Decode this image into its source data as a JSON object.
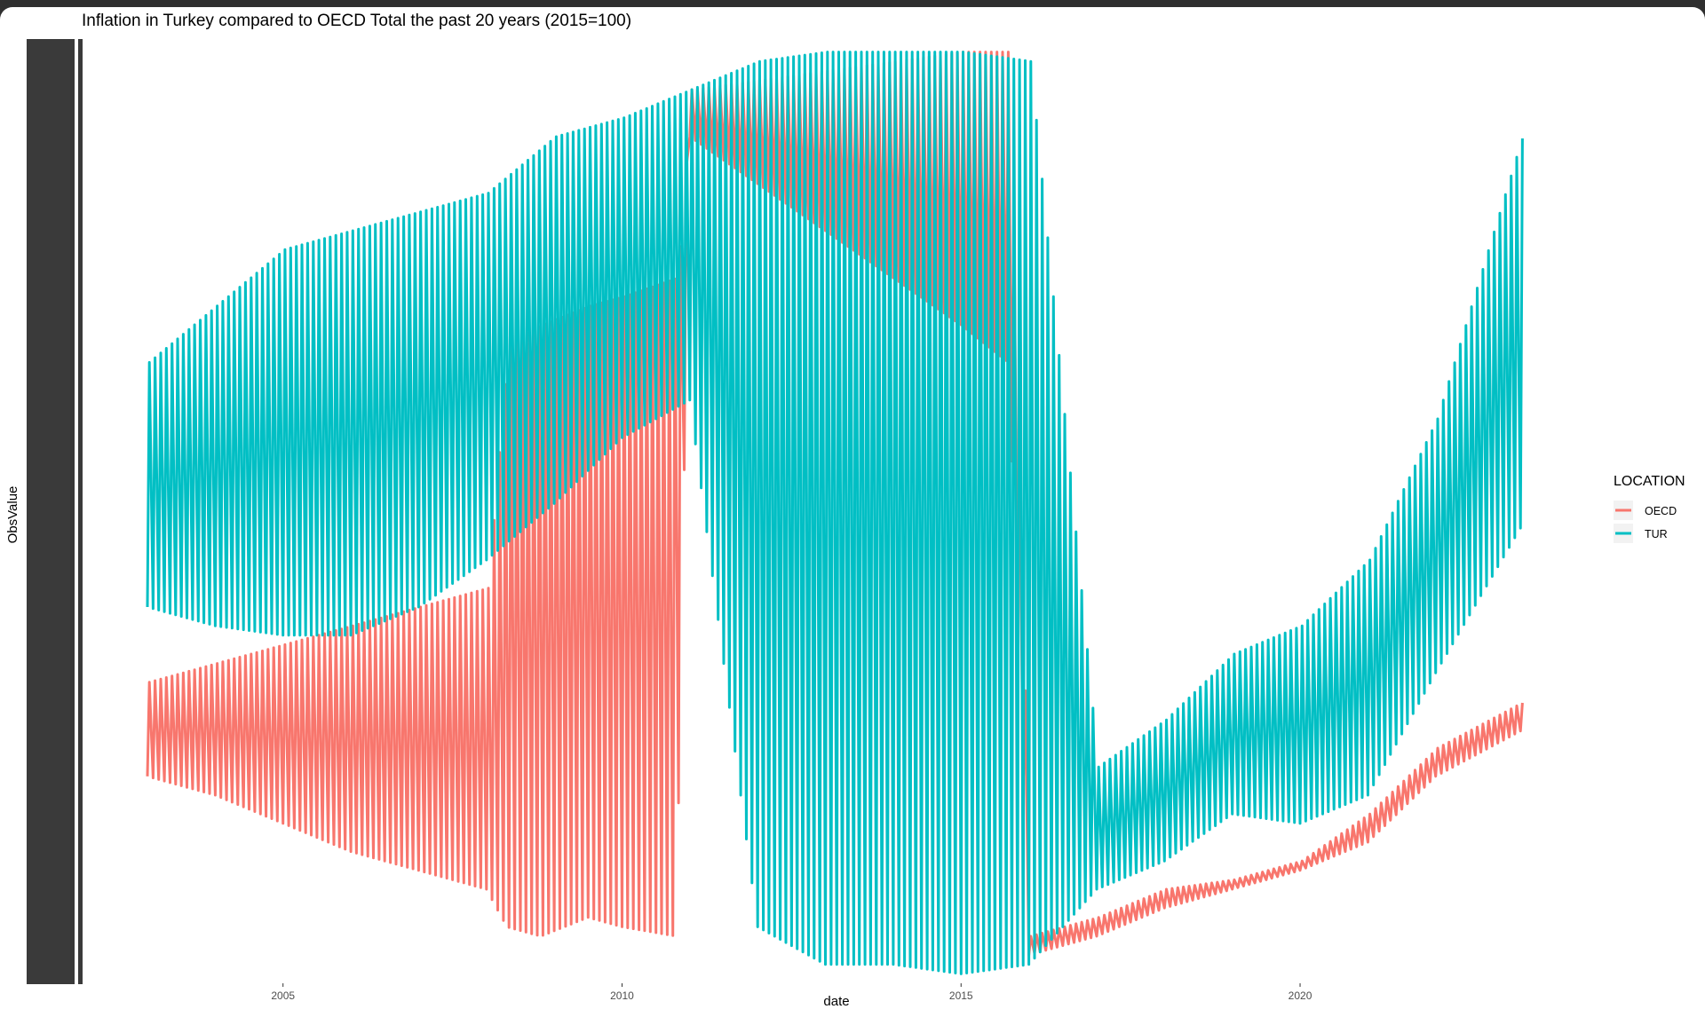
{
  "chart_data": {
    "type": "line",
    "title": "Inflation in Turkey compared to OECD Total the past 20 years (2015=100)",
    "xlabel": "date",
    "ylabel": "ObsValue",
    "x_ticks": [
      "2005",
      "2010",
      "2015",
      "2020"
    ],
    "xlim": [
      2003.0,
      2023.3
    ],
    "legend": {
      "title": "LOCATION",
      "position": "right",
      "entries": [
        {
          "name": "OECD",
          "color": "#f8766d"
        },
        {
          "name": "TUR",
          "color": "#00bfc4"
        }
      ]
    },
    "y_tick_labels_shown": false,
    "grid": false,
    "series": [
      {
        "name": "OECD",
        "color": "#f8766d",
        "low": [
          [
            2003.0,
            0.22
          ],
          [
            2004.0,
            0.2
          ],
          [
            2005.0,
            0.17
          ],
          [
            2006.0,
            0.14
          ],
          [
            2007.0,
            0.12
          ],
          [
            2008.0,
            0.1
          ],
          [
            2008.3,
            0.06
          ],
          [
            2008.8,
            0.05
          ],
          [
            2009.5,
            0.07
          ],
          [
            2010.0,
            0.06
          ],
          [
            2010.8,
            0.05
          ],
          [
            2011.0,
            0.9
          ],
          [
            2012.0,
            0.85
          ],
          [
            2013.0,
            0.8
          ],
          [
            2014.0,
            0.75
          ],
          [
            2015.0,
            0.7
          ],
          [
            2015.7,
            0.66
          ],
          [
            2016.0,
            0.03
          ],
          [
            2017.0,
            0.05
          ],
          [
            2018.0,
            0.08
          ],
          [
            2019.0,
            0.1
          ],
          [
            2020.0,
            0.12
          ],
          [
            2021.0,
            0.15
          ],
          [
            2022.0,
            0.22
          ],
          [
            2023.3,
            0.27
          ]
        ],
        "high": [
          [
            2003.0,
            0.32
          ],
          [
            2004.0,
            0.34
          ],
          [
            2005.0,
            0.36
          ],
          [
            2006.0,
            0.38
          ],
          [
            2007.0,
            0.4
          ],
          [
            2008.0,
            0.42
          ],
          [
            2008.3,
            0.68
          ],
          [
            2008.8,
            0.7
          ],
          [
            2009.5,
            0.72
          ],
          [
            2010.0,
            0.73
          ],
          [
            2010.8,
            0.75
          ],
          [
            2011.0,
            0.95
          ],
          [
            2012.0,
            0.96
          ],
          [
            2013.0,
            0.97
          ],
          [
            2014.0,
            0.98
          ],
          [
            2015.0,
            0.99
          ],
          [
            2015.7,
            0.99
          ],
          [
            2016.0,
            0.05
          ],
          [
            2017.0,
            0.07
          ],
          [
            2018.0,
            0.1
          ],
          [
            2019.0,
            0.11
          ],
          [
            2020.0,
            0.13
          ],
          [
            2021.0,
            0.18
          ],
          [
            2022.0,
            0.25
          ],
          [
            2023.3,
            0.3
          ]
        ]
      },
      {
        "name": "TUR",
        "color": "#00bfc4",
        "low": [
          [
            2003.0,
            0.4
          ],
          [
            2004.0,
            0.38
          ],
          [
            2005.0,
            0.37
          ],
          [
            2006.0,
            0.37
          ],
          [
            2007.0,
            0.4
          ],
          [
            2008.0,
            0.45
          ],
          [
            2009.0,
            0.51
          ],
          [
            2010.0,
            0.58
          ],
          [
            2011.0,
            0.62
          ],
          [
            2012.0,
            0.06
          ],
          [
            2013.0,
            0.02
          ],
          [
            2014.0,
            0.02
          ],
          [
            2015.0,
            0.01
          ],
          [
            2016.0,
            0.02
          ],
          [
            2017.0,
            0.1
          ],
          [
            2018.0,
            0.13
          ],
          [
            2019.0,
            0.18
          ],
          [
            2020.0,
            0.17
          ],
          [
            2021.0,
            0.2
          ],
          [
            2022.0,
            0.33
          ],
          [
            2023.3,
            0.49
          ]
        ],
        "high": [
          [
            2003.0,
            0.66
          ],
          [
            2004.0,
            0.72
          ],
          [
            2005.0,
            0.78
          ],
          [
            2006.0,
            0.8
          ],
          [
            2007.0,
            0.82
          ],
          [
            2008.0,
            0.84
          ],
          [
            2009.0,
            0.9
          ],
          [
            2010.0,
            0.92
          ],
          [
            2011.0,
            0.95
          ],
          [
            2012.0,
            0.98
          ],
          [
            2013.0,
            0.99
          ],
          [
            2014.0,
            0.99
          ],
          [
            2015.0,
            0.99
          ],
          [
            2016.0,
            0.98
          ],
          [
            2017.0,
            0.23
          ],
          [
            2018.0,
            0.28
          ],
          [
            2019.0,
            0.35
          ],
          [
            2020.0,
            0.38
          ],
          [
            2021.0,
            0.45
          ],
          [
            2022.0,
            0.6
          ],
          [
            2023.3,
            0.91
          ]
        ]
      }
    ]
  }
}
